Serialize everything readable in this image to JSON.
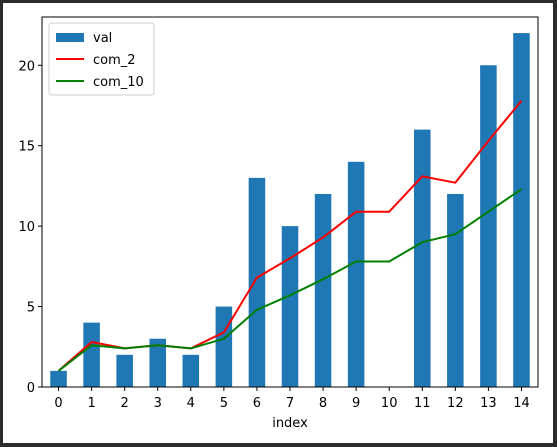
{
  "chart_data": {
    "type": "bar",
    "categories": [
      "0",
      "1",
      "2",
      "3",
      "4",
      "5",
      "6",
      "7",
      "8",
      "9",
      "10",
      "11",
      "12",
      "13",
      "14"
    ],
    "xlabel": "index",
    "ylabel": "",
    "ylim": [
      0,
      23
    ],
    "yticks": [
      0,
      5,
      10,
      15,
      20
    ],
    "grid": false,
    "legend_position": "top-left",
    "series": [
      {
        "name": "val",
        "kind": "bar",
        "color": "#1f77b4",
        "values": [
          1,
          4,
          2,
          3,
          2,
          5,
          13,
          10,
          12,
          14,
          0,
          16,
          12,
          20,
          22
        ]
      },
      {
        "name": "com_2",
        "kind": "line",
        "color": "#ff0000",
        "values": [
          1.0,
          2.8,
          2.4,
          2.6,
          2.4,
          3.4,
          6.8,
          8.0,
          9.3,
          10.9,
          10.9,
          13.1,
          12.7,
          15.3,
          17.8
        ]
      },
      {
        "name": "com_10",
        "kind": "line",
        "color": "#008000",
        "values": [
          1.0,
          2.6,
          2.4,
          2.6,
          2.4,
          3.0,
          4.8,
          5.7,
          6.7,
          7.8,
          7.8,
          9.0,
          9.5,
          10.9,
          12.3
        ]
      }
    ]
  }
}
